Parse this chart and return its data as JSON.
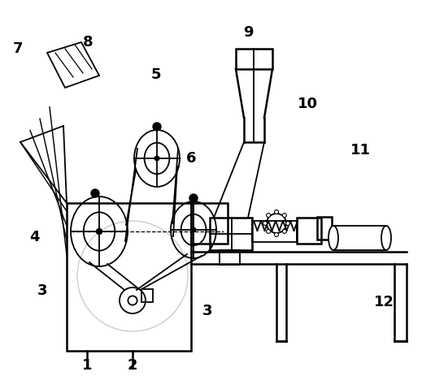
{
  "bg_color": "#ffffff",
  "lc": "#000000",
  "gray": "#999999",
  "lgray": "#cccccc",
  "figsize": [
    5.19,
    4.63
  ],
  "dpi": 100
}
